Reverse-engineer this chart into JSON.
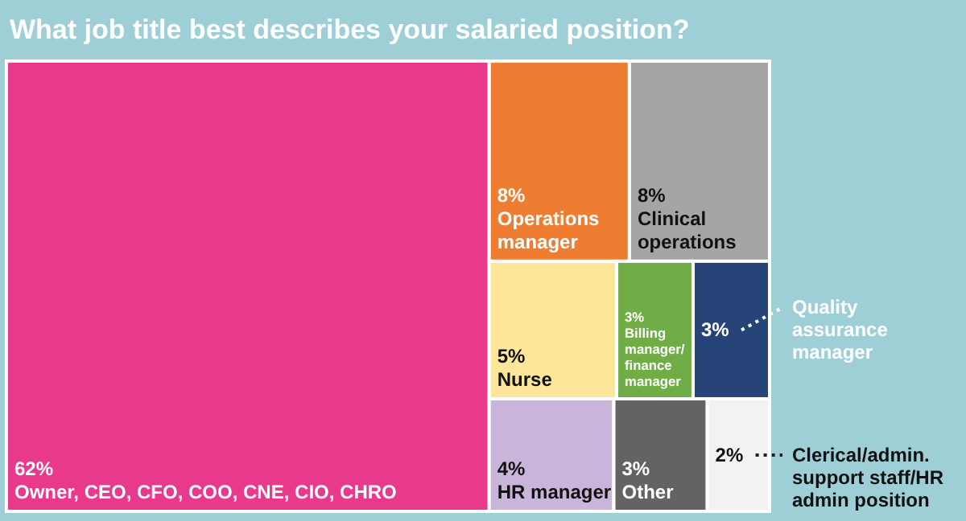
{
  "chart_data": {
    "type": "other",
    "title": "What job title best describes your salaried position?",
    "categories": [
      "Owner, CEO, CFO, COO, CNE, CIO, CHRO",
      "Operations manager",
      "Clinical operations",
      "Nurse",
      "Billing manager/finance manager",
      "Quality assurance manager",
      "HR manager",
      "Other",
      "Clerical/admin. support staff/HR admin position"
    ],
    "values": [
      62,
      8,
      8,
      5,
      3,
      3,
      4,
      3,
      2
    ],
    "value_labels": [
      "62%",
      "8%",
      "8%",
      "5%",
      "3%",
      "3%",
      "4%",
      "3%",
      "2%"
    ],
    "colors": [
      "#e8398d",
      "#ee7d31",
      "#a5a5a5",
      "#fde59a",
      "#70ad47",
      "#264478",
      "#c9b5d9",
      "#636363",
      "#f2f2f2"
    ]
  }
}
